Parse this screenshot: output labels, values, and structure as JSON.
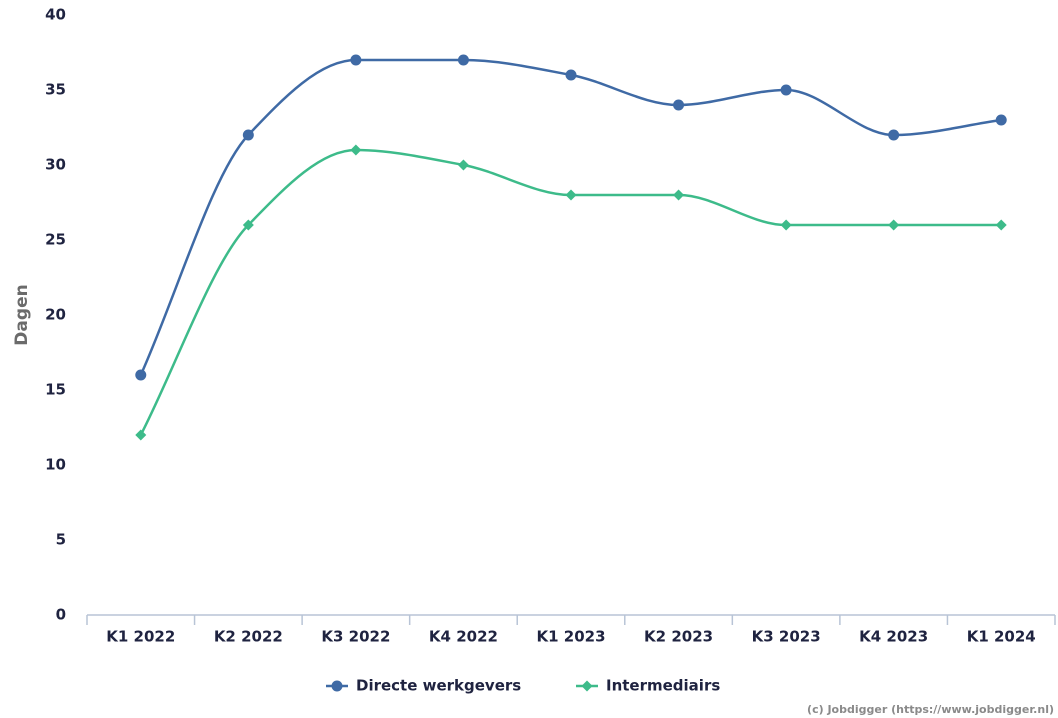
{
  "chart_data": {
    "type": "line",
    "y_label": "Dagen",
    "categories": [
      "K1 2022",
      "K2 2022",
      "K3 2022",
      "K4 2022",
      "K1 2023",
      "K2 2023",
      "K3 2023",
      "K4 2023",
      "K1 2024"
    ],
    "series": [
      {
        "name": "Directe werkgevers",
        "color": "#3f6aa5",
        "marker": "circle",
        "values": [
          16,
          32,
          37,
          37,
          36,
          34,
          35,
          32,
          33
        ]
      },
      {
        "name": "Intermediairs",
        "color": "#3dbb8a",
        "marker": "diamond",
        "values": [
          12,
          26,
          31,
          30,
          28,
          28,
          26,
          26,
          26
        ]
      }
    ],
    "ylim": [
      0,
      40
    ],
    "yticks": [
      0,
      5,
      10,
      15,
      20,
      25,
      30,
      35,
      40
    ],
    "grid": false,
    "legend": "bottom",
    "credit": "(c) Jobdigger (https://www.jobdigger.nl)"
  }
}
